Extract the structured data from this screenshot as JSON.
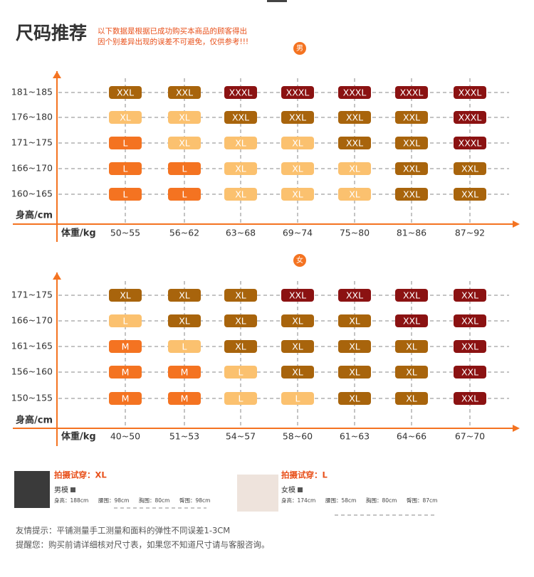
{
  "header": {
    "title": "尺码推荐",
    "note": [
      "以下数据是根据已成功购买本商品的顾客得出",
      "因个别差异出现的误差不可避免，仅供参考!!!"
    ]
  },
  "grids": [
    {
      "badge": "男",
      "y_label": "身高/cm",
      "x_label": "体重/kg",
      "size_colors": {
        "L": "#f47321",
        "XL": "#fbc16f",
        "XXL": "#a8640c",
        "XXXL": "#8b1212"
      },
      "columns": [
        "50~55",
        "56~62",
        "63~68",
        "69~74",
        "75~80",
        "81~86",
        "87~92"
      ],
      "rows": [
        {
          "label": "181~185",
          "cells": [
            "XXL",
            "XXL",
            "XXXL",
            "XXXL",
            "XXXL",
            "XXXL",
            "XXXL"
          ]
        },
        {
          "label": "176~180",
          "cells": [
            "XL",
            "XL",
            "XXL",
            "XXL",
            "XXL",
            "XXL",
            "XXXL"
          ]
        },
        {
          "label": "171~175",
          "cells": [
            "L",
            "XL",
            "XL",
            "XL",
            "XXL",
            "XXL",
            "XXXL"
          ]
        },
        {
          "label": "166~170",
          "cells": [
            "L",
            "L",
            "XL",
            "XL",
            "XL",
            "XXL",
            "XXL"
          ]
        },
        {
          "label": "160~165",
          "cells": [
            "L",
            "L",
            "XL",
            "XL",
            "XL",
            "XXL",
            "XXL"
          ]
        }
      ]
    },
    {
      "badge": "女",
      "y_label": "身高/cm",
      "x_label": "体重/kg",
      "size_colors": {
        "M": "#f47321",
        "L": "#fbc16f",
        "XL": "#a8640c",
        "XXL": "#8b1212"
      },
      "columns": [
        "40~50",
        "51~53",
        "54~57",
        "58~60",
        "61~63",
        "64~66",
        "67~70"
      ],
      "rows": [
        {
          "label": "171~175",
          "cells": [
            "XL",
            "XL",
            "XL",
            "XXL",
            "XXL",
            "XXL",
            "XXL"
          ]
        },
        {
          "label": "166~170",
          "cells": [
            "L",
            "XL",
            "XL",
            "XL",
            "XL",
            "XXL",
            "XXL"
          ]
        },
        {
          "label": "161~165",
          "cells": [
            "M",
            "L",
            "XL",
            "XL",
            "XL",
            "XL",
            "XXL"
          ]
        },
        {
          "label": "156~160",
          "cells": [
            "M",
            "M",
            "L",
            "XL",
            "XL",
            "XL",
            "XXL"
          ]
        },
        {
          "label": "150~155",
          "cells": [
            "M",
            "M",
            "L",
            "L",
            "XL",
            "XL",
            "XXL"
          ]
        }
      ]
    }
  ],
  "models": [
    {
      "caption": "拍摄试穿：XL",
      "name": "男模",
      "measurements": [
        "身高：188cm",
        "腰围：98cm",
        "胸围：80cm",
        "臀围：98cm"
      ]
    },
    {
      "caption": "拍摄试穿：L",
      "name": "女模",
      "measurements": [
        "身高：174cm",
        "腰围：58cm",
        "胸围：80cm",
        "臀围：87cm"
      ]
    }
  ],
  "footer": [
    "友情提示：平铺测量手工测量和面料的弹性不同误差1-3CM",
    "提醒您：购买前请详细核对尺寸表，如果您不知道尺寸请与客服咨询。"
  ]
}
